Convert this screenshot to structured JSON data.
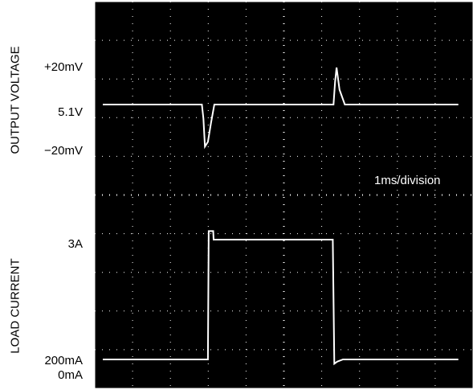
{
  "chart_data": {
    "type": "line",
    "x_division_label": "1ms/division",
    "voltage_trace": {
      "name": "OUTPUT VOLTAGE",
      "baseline_label": "5.1V",
      "upper_label": "+20mV",
      "lower_label": "−20mV",
      "points_ms_mV": [
        [
          0,
          0
        ],
        [
          2.62,
          0
        ],
        [
          2.66,
          -6
        ],
        [
          2.7,
          -18
        ],
        [
          2.78,
          -16
        ],
        [
          2.86,
          -8
        ],
        [
          2.95,
          0
        ],
        [
          6.1,
          0
        ],
        [
          6.14,
          12
        ],
        [
          6.18,
          20
        ],
        [
          6.26,
          8
        ],
        [
          6.4,
          0
        ],
        [
          9.4,
          0
        ]
      ]
    },
    "current_trace": {
      "name": "LOAD CURRENT",
      "upper_label": "3A",
      "lower_label": "200mA",
      "zero_label": "0mA",
      "points_ms_A": [
        [
          0,
          0.2
        ],
        [
          2.78,
          0.2
        ],
        [
          2.8,
          3.2
        ],
        [
          2.92,
          3.2
        ],
        [
          2.93,
          3.0
        ],
        [
          6.08,
          3.0
        ],
        [
          6.12,
          0.1
        ],
        [
          6.2,
          0.15
        ],
        [
          6.35,
          0.2
        ],
        [
          9.4,
          0.2
        ]
      ]
    }
  }
}
